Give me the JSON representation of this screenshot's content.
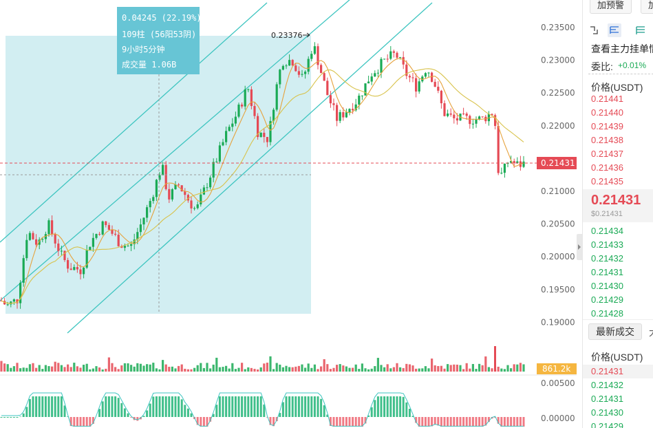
{
  "chart_data": {
    "type": "candlestick",
    "y_ticks": [
      "0.23500",
      "0.23000",
      "0.22500",
      "0.22000",
      "0.21431",
      "0.21000",
      "0.20500",
      "0.20000",
      "0.19500",
      "0.19000"
    ],
    "ylim": [
      0.1885,
      0.2395
    ],
    "current_price_label": "0.21431",
    "range_high_label": "0.23376",
    "volume_label": "861.2k",
    "macd_ticks": [
      "0.00500",
      "0.00000"
    ],
    "info_box": {
      "change": "0.04245 (22.19%)",
      "bars": "109柱 (56阳53阴)",
      "duration": "9小时5分钟",
      "volume": "成交量 1.06B"
    },
    "close_anchors": [
      [
        0,
        0.1935
      ],
      [
        10,
        0.1925
      ],
      [
        25,
        0.1935
      ],
      [
        40,
        0.204
      ],
      [
        55,
        0.202
      ],
      [
        70,
        0.205
      ],
      [
        90,
        0.2
      ],
      [
        100,
        0.1985
      ],
      [
        118,
        0.198
      ],
      [
        130,
        0.202
      ],
      [
        150,
        0.205
      ],
      [
        160,
        0.204
      ],
      [
        175,
        0.202
      ],
      [
        190,
        0.2015
      ],
      [
        205,
        0.205
      ],
      [
        220,
        0.209
      ],
      [
        235,
        0.214
      ],
      [
        245,
        0.209
      ],
      [
        260,
        0.211
      ],
      [
        275,
        0.2085
      ],
      [
        285,
        0.207
      ],
      [
        300,
        0.211
      ],
      [
        315,
        0.215
      ],
      [
        330,
        0.219
      ],
      [
        345,
        0.222
      ],
      [
        360,
        0.226
      ],
      [
        375,
        0.219
      ],
      [
        390,
        0.218
      ],
      [
        400,
        0.225
      ],
      [
        410,
        0.23
      ],
      [
        425,
        0.23
      ],
      [
        440,
        0.227
      ],
      [
        455,
        0.2325
      ],
      [
        462,
        0.23
      ],
      [
        475,
        0.225
      ],
      [
        490,
        0.221
      ],
      [
        500,
        0.222
      ],
      [
        520,
        0.224
      ],
      [
        540,
        0.228
      ],
      [
        560,
        0.23
      ],
      [
        575,
        0.231
      ],
      [
        590,
        0.228
      ],
      [
        605,
        0.226
      ],
      [
        620,
        0.229
      ],
      [
        630,
        0.227
      ],
      [
        645,
        0.222
      ],
      [
        660,
        0.221
      ],
      [
        680,
        0.221
      ],
      [
        700,
        0.221
      ],
      [
        715,
        0.222
      ],
      [
        720,
        0.22
      ],
      [
        725,
        0.212
      ],
      [
        732,
        0.213
      ],
      [
        740,
        0.215
      ],
      [
        750,
        0.214
      ],
      [
        765,
        0.2143
      ]
    ]
  },
  "panel": {
    "alert_button": "加预警",
    "second_button": "加",
    "depth_link": "查看主力挂单情",
    "ratio_label": "委比:",
    "ratio_value": "+0.01%",
    "price_header": "价格(USDT)",
    "asks": [
      "0.21441",
      "0.21440",
      "0.21439",
      "0.21438",
      "0.21437",
      "0.21436",
      "0.21435"
    ],
    "last_price": "0.21431",
    "last_price_usd": "$0.21431",
    "bids": [
      "0.21434",
      "0.21433",
      "0.21432",
      "0.21431",
      "0.21430",
      "0.21429",
      "0.21428"
    ],
    "trades_tab": "最新成交",
    "trades_tab_2": "大",
    "trades_header": "价格(USDT)",
    "trades": [
      "0.21431",
      "0.21432",
      "0.21431",
      "0.21430",
      "0.21429"
    ]
  },
  "colors": {
    "up": "#1aaa55",
    "down": "#e54a55",
    "channel": "#3ec5c0",
    "ma_fast": "#e6a23c",
    "ma_slow": "#d8c24a",
    "selection": "#d2eef2"
  }
}
